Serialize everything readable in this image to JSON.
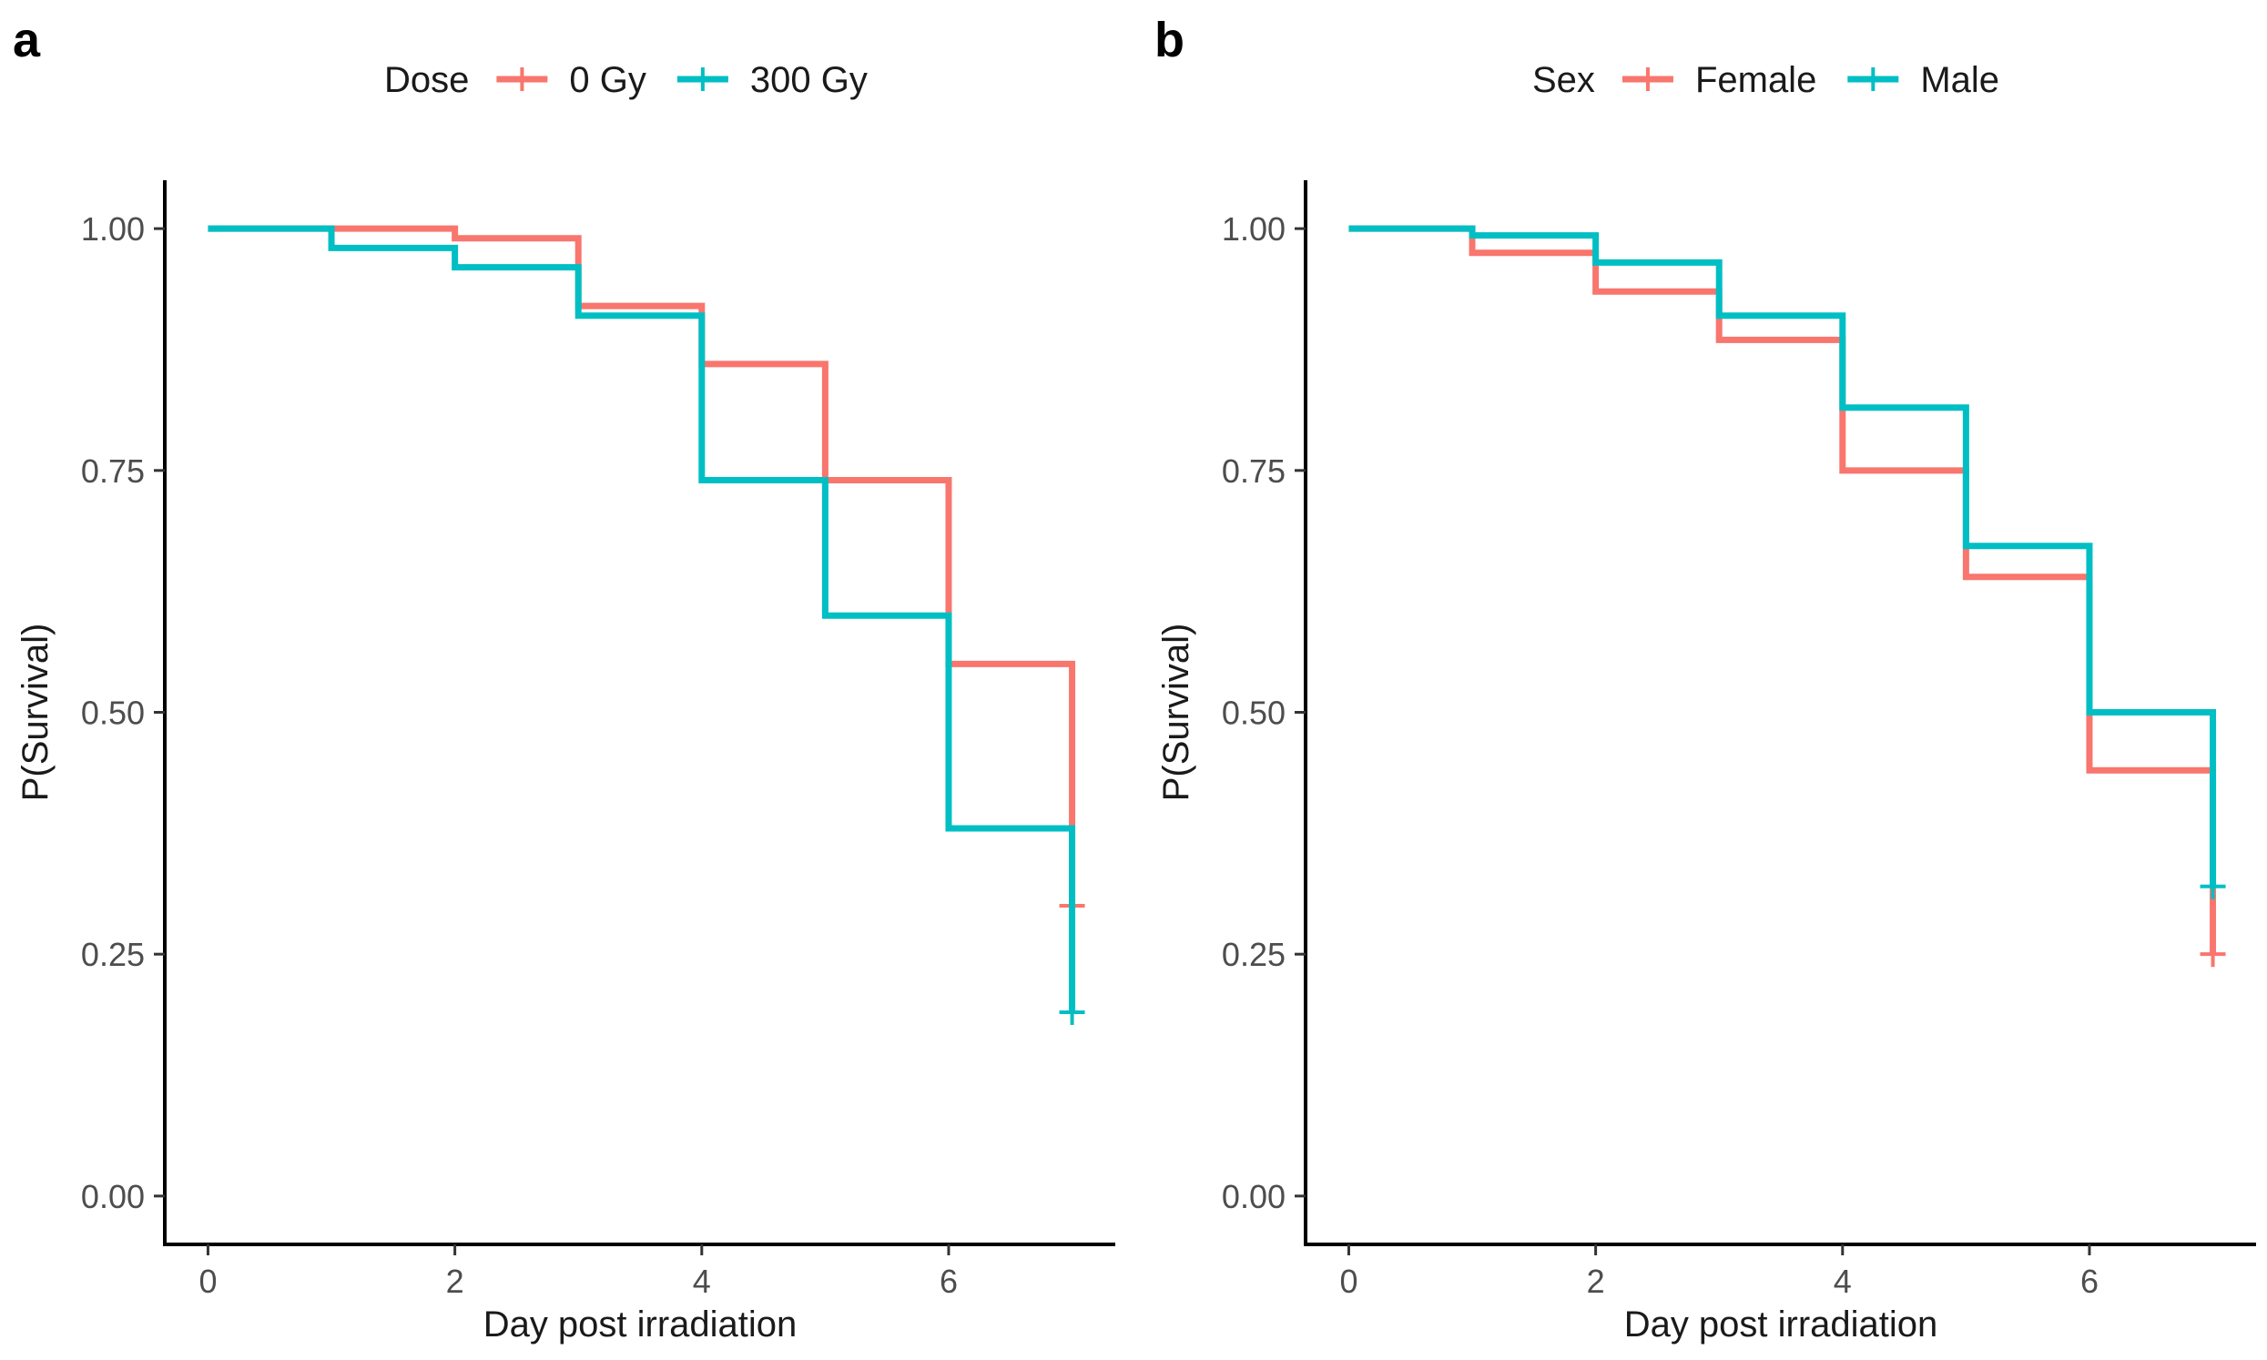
{
  "colors": {
    "series_a": "#F8766D",
    "series_b": "#00BFC4"
  },
  "chart_data": [
    {
      "panel": "a",
      "type": "line",
      "subtype": "kaplan-meier step",
      "xlabel": "Day post irradiation",
      "ylabel": "P(Survival)",
      "xlim": [
        -0.35,
        7.35
      ],
      "ylim": [
        -0.05,
        1.05
      ],
      "xticks": [
        0,
        2,
        4,
        6
      ],
      "xtick_labels": [
        "0",
        "2",
        "4",
        "6"
      ],
      "yticks": [
        0,
        0.25,
        0.5,
        0.75,
        1
      ],
      "ytick_labels": [
        "0.00",
        "0.25",
        "0.50",
        "0.75",
        "1.00"
      ],
      "grid": false,
      "legend": {
        "title": "Dose",
        "position": "top",
        "entries": [
          "0 Gy",
          "300 Gy"
        ]
      },
      "series": [
        {
          "name": "0 Gy",
          "color": "#F8766D",
          "x": [
            0,
            1,
            2,
            3,
            4,
            5,
            6,
            7
          ],
          "y": [
            1.0,
            1.0,
            0.99,
            0.92,
            0.86,
            0.74,
            0.55,
            0.3
          ],
          "censor": [
            [
              7,
              0.3
            ]
          ]
        },
        {
          "name": "300 Gy",
          "color": "#00BFC4",
          "x": [
            0,
            1,
            2,
            3,
            4,
            5,
            6,
            7
          ],
          "y": [
            1.0,
            0.98,
            0.96,
            0.91,
            0.74,
            0.6,
            0.38,
            0.19
          ],
          "censor": [
            [
              7,
              0.19
            ]
          ]
        }
      ]
    },
    {
      "panel": "b",
      "type": "line",
      "subtype": "kaplan-meier step",
      "xlabel": "Day post irradiation",
      "ylabel": "P(Survival)",
      "xlim": [
        -0.35,
        7.35
      ],
      "ylim": [
        -0.05,
        1.05
      ],
      "xticks": [
        0,
        2,
        4,
        6
      ],
      "xtick_labels": [
        "0",
        "2",
        "4",
        "6"
      ],
      "yticks": [
        0,
        0.25,
        0.5,
        0.75,
        1
      ],
      "ytick_labels": [
        "0.00",
        "0.25",
        "0.50",
        "0.75",
        "1.00"
      ],
      "grid": false,
      "legend": {
        "title": "Sex",
        "position": "top",
        "entries": [
          "Female",
          "Male"
        ]
      },
      "series": [
        {
          "name": "Female",
          "color": "#F8766D",
          "x": [
            0,
            1,
            2,
            3,
            4,
            5,
            6,
            7
          ],
          "y": [
            1.0,
            0.975,
            0.935,
            0.885,
            0.75,
            0.64,
            0.44,
            0.25
          ],
          "censor": [
            [
              7,
              0.25
            ]
          ]
        },
        {
          "name": "Male",
          "color": "#00BFC4",
          "x": [
            0,
            1,
            2,
            3,
            4,
            5,
            6,
            7
          ],
          "y": [
            1.0,
            0.993,
            0.965,
            0.91,
            0.815,
            0.672,
            0.5,
            0.32
          ],
          "censor": [
            [
              7,
              0.32
            ]
          ]
        }
      ]
    }
  ]
}
